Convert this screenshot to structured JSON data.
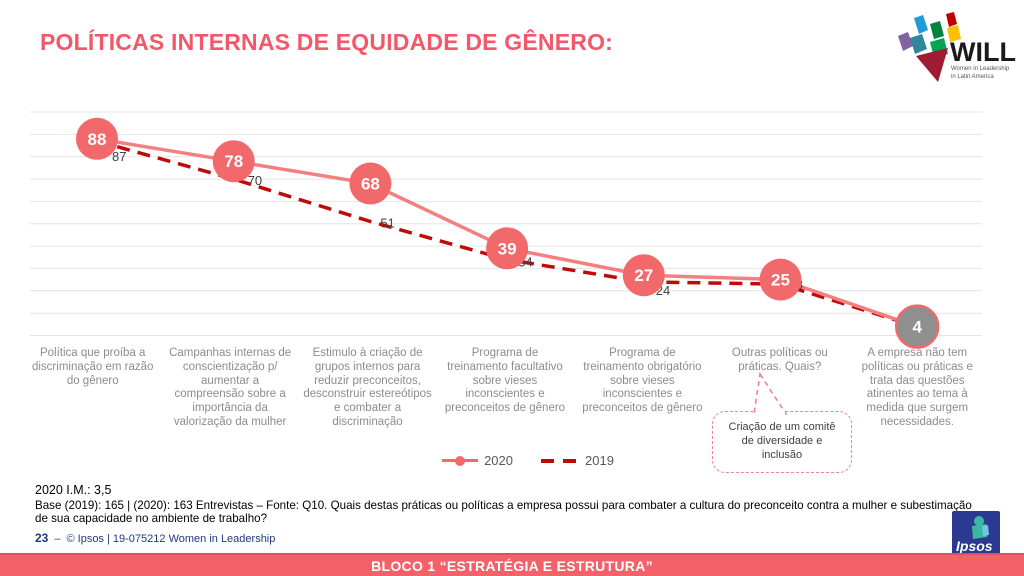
{
  "slide": {
    "title": "POLÍTICAS INTERNAS DE EQUIDADE DE GÊNERO:",
    "accent_color": "#f4566a"
  },
  "chart_data": {
    "type": "line",
    "categories": [
      "Política que proíba a discriminação em razão do gênero",
      "Campanhas internas de conscientização p/ aumentar a compreensão sobre a importância da valorização da mulher",
      "Estimulo à criação de grupos internos para reduzir preconceitos, desconstruir estereótipos e combater a discriminação",
      "Programa de treinamento facultativo sobre vieses inconscientes e preconceitos de gênero",
      "Programa de treinamento obrigatório sobre vieses inconscientes e preconceitos de gênero",
      "Outras políticas ou práticas. Quais?",
      "A empresa não tem políticas ou práticas e trata das questões atinentes ao tema à medida que surgem necessidades."
    ],
    "series": [
      {
        "name": "2020",
        "values": [
          88,
          78,
          68,
          39,
          27,
          25,
          4
        ],
        "color": "#f2696c",
        "line_color": "#f3807f",
        "style": "solid",
        "marker": "filled-circle",
        "last_marker_fill": "#8f8f8f",
        "marker_text_color": "#ffffff"
      },
      {
        "name": "2019",
        "values": [
          87,
          70,
          51,
          34,
          24,
          23,
          4
        ],
        "color": "#bf0a0a",
        "style": "dashed",
        "label_color": "#404040"
      }
    ],
    "ylim": [
      0,
      100
    ],
    "grid": true,
    "grid_step": 10,
    "grid_color": "#e4e4e4",
    "legend_position": "bottom-center",
    "title": "",
    "xlabel": "",
    "ylabel": ""
  },
  "callout": {
    "text": "Criação de um comitê de diversidade e inclusão"
  },
  "notes": {
    "im": "2020 I.M.: 3,5",
    "base": "Base (2019): 165 | (2020): 163 Entrevistas – Fonte: Q10. Quais destas práticas ou políticas a empresa possui para combater a cultura do preconceito contra a mulher e subestimação de sua capacidade no ambiente de trabalho?"
  },
  "footer": {
    "page": "23",
    "separator": "–",
    "credit": "© Ipsos | 19-075212 Women in Leadership"
  },
  "bottom_bar": {
    "label": "BLOCO 1 “ESTRATÉGIA E ESTRUTURA”",
    "color": "#f4616b"
  },
  "logos": {
    "will": {
      "title": "WILL",
      "subtitle1": "Women in Leadership",
      "subtitle2": "in Latin America"
    },
    "ipsos": {
      "label": "Ipsos"
    }
  }
}
